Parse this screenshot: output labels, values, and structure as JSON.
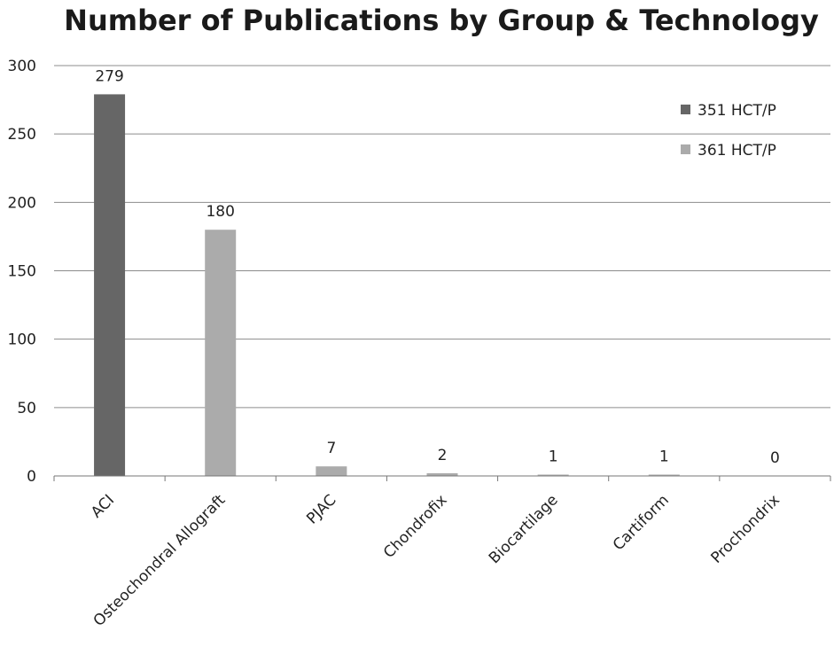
{
  "chart_data": {
    "type": "bar",
    "title": "Number of Publications by Group & Technology",
    "xlabel": "",
    "ylabel": "",
    "ylim": [
      0,
      300
    ],
    "yticks": [
      0,
      50,
      100,
      150,
      200,
      250,
      300
    ],
    "grid": true,
    "legend_position": "top-right",
    "categories": [
      "ACI",
      "Osteochondral Allograft",
      "PJAC",
      "Chondrofix",
      "Biocartilage",
      "Cartiform",
      "Prochondrix"
    ],
    "series": [
      {
        "name": "351 HCT/P",
        "color": "#666666",
        "values": [
          279,
          0,
          0,
          0,
          0,
          0,
          0
        ]
      },
      {
        "name": "361 HCT/P",
        "color": "#ababab",
        "values": [
          0,
          180,
          7,
          2,
          1,
          1,
          0
        ]
      }
    ],
    "data_labels": [
      "279",
      "180",
      "7",
      "2",
      "1",
      "1",
      "0"
    ]
  }
}
